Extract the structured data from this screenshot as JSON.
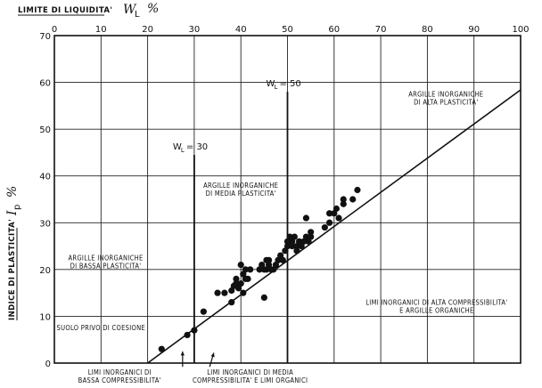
{
  "chart_data": {
    "type": "scatter",
    "title": "",
    "xlabel": "LIMITE DI LIQUIDITA'",
    "xsymbol": "W",
    "xsymbol_sub": "L",
    "xunit": "%",
    "ylabel": "INDICE DI PLASTICITA'",
    "ysymbol": "I",
    "ysymbol_sub": "p",
    "yunit": "%",
    "xlim": [
      0,
      100
    ],
    "ylim": [
      0,
      70
    ],
    "xticks": [
      "0",
      "10",
      "20",
      "30",
      "40",
      "50",
      "60",
      "70",
      "80",
      "90",
      "100"
    ],
    "yticks": [
      "0",
      "10",
      "20",
      "30",
      "40",
      "50",
      "60",
      "70"
    ],
    "grid": true,
    "a_line": {
      "slope": 0.73,
      "x0": 20
    },
    "vlines": [
      {
        "x": 30,
        "label": "W",
        "sub": "L",
        "value": "= 30"
      },
      {
        "x": 50,
        "label": "W",
        "sub": "L",
        "value": "= 50"
      }
    ],
    "regions": [
      {
        "lines": [
          "ARGILLE INORGANICHE",
          "DI ALTA PLASTICITA'"
        ],
        "x": 84,
        "y": 57
      },
      {
        "lines": [
          "ARGILLE INORGANICHE",
          "DI MEDIA PLASTICITA'"
        ],
        "x": 40,
        "y": 37.5
      },
      {
        "lines": [
          "ARGILLE INORGANICHE",
          "DI BASSA PLASTICITA'"
        ],
        "x": 11,
        "y": 22
      },
      {
        "lines": [
          "LIMI INORGANICI DI ALTA COMPRESSIBILITA'",
          "E ARGILLE ORGANICHE"
        ],
        "x": 82,
        "y": 12.5
      },
      {
        "lines": [
          "SUOLO PRIVO DI COESIONE"
        ],
        "x": 10,
        "y": 7
      },
      {
        "lines": [
          "LIMI INORGANICI DI",
          "BASSA COMPRESSIBILITA'"
        ],
        "x": 14,
        "y": -2.5
      },
      {
        "lines": [
          "LIMI INORGANICI DI MEDIA",
          "COMPRESSIBILITA' E LIMI ORGANICI"
        ],
        "x": 42,
        "y": -2.5
      }
    ],
    "arrows": [
      {
        "from": [
          27.5,
          -0.8
        ],
        "to": [
          27.5,
          2.5
        ]
      },
      {
        "from": [
          33.3,
          -0.8
        ],
        "to": [
          34.2,
          2.2
        ]
      }
    ],
    "points": [
      [
        23,
        3
      ],
      [
        28.5,
        6
      ],
      [
        30,
        7
      ],
      [
        32,
        11
      ],
      [
        35,
        15
      ],
      [
        36.5,
        15
      ],
      [
        38,
        15.5
      ],
      [
        38,
        13
      ],
      [
        38.5,
        16.5
      ],
      [
        39,
        17
      ],
      [
        39,
        18
      ],
      [
        39.5,
        16
      ],
      [
        40,
        21
      ],
      [
        40,
        17
      ],
      [
        40.5,
        15
      ],
      [
        40.5,
        19
      ],
      [
        41,
        20
      ],
      [
        41,
        18
      ],
      [
        41.5,
        18
      ],
      [
        42,
        20
      ],
      [
        44,
        20
      ],
      [
        44.5,
        21
      ],
      [
        45,
        20
      ],
      [
        45,
        14
      ],
      [
        45.5,
        22
      ],
      [
        45.5,
        20
      ],
      [
        46,
        21
      ],
      [
        46,
        22
      ],
      [
        46.5,
        20
      ],
      [
        47,
        20
      ],
      [
        47.5,
        21
      ],
      [
        48,
        22
      ],
      [
        48.5,
        23
      ],
      [
        49,
        22
      ],
      [
        49.5,
        24
      ],
      [
        50,
        25
      ],
      [
        50,
        26
      ],
      [
        50.5,
        27
      ],
      [
        51,
        25
      ],
      [
        51,
        26
      ],
      [
        51.5,
        27
      ],
      [
        52,
        25
      ],
      [
        52,
        24
      ],
      [
        52.5,
        26
      ],
      [
        53,
        25
      ],
      [
        53.5,
        26
      ],
      [
        54,
        27
      ],
      [
        54,
        31
      ],
      [
        54.5,
        26
      ],
      [
        55,
        28
      ],
      [
        55,
        27
      ],
      [
        58,
        29
      ],
      [
        59,
        30
      ],
      [
        59,
        32
      ],
      [
        60,
        32
      ],
      [
        60.5,
        33
      ],
      [
        61,
        31
      ],
      [
        62,
        34
      ],
      [
        62,
        35
      ],
      [
        64,
        35
      ],
      [
        65,
        37
      ]
    ]
  }
}
